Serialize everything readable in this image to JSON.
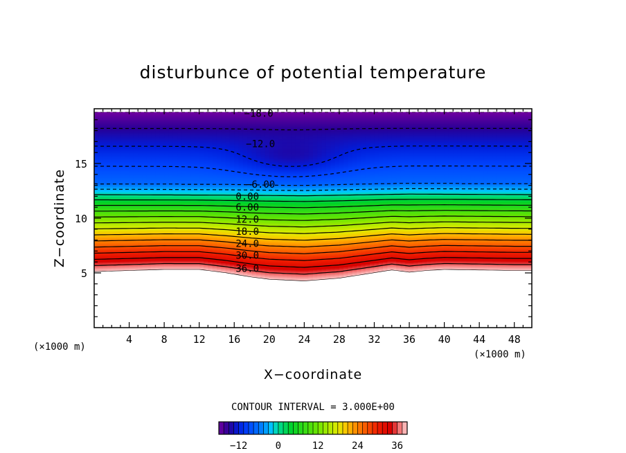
{
  "chart_data": {
    "type": "heatmap",
    "subtype": "filled-contour",
    "title": "disturbunce of potential temperature",
    "xlabel": "X−coordinate",
    "ylabel": "Z−coordinate",
    "x_unit_left": "(×1000 m)",
    "x_unit_right": "(×1000 m)",
    "xlim": [
      0,
      50
    ],
    "ylim": [
      0,
      20
    ],
    "xticks": [
      "4",
      "8",
      "12",
      "16",
      "20",
      "24",
      "28",
      "32",
      "36",
      "40",
      "44",
      "48"
    ],
    "yticks": [
      "5",
      "10",
      "15"
    ],
    "contour_interval_text": "CONTOUR INTERVAL = 3.000E+00",
    "contour_interval": 3.0,
    "value_range": [
      -18,
      39
    ],
    "colorbar_ticks": [
      "−12",
      "0",
      "12",
      "24",
      "36"
    ],
    "colorbar_tick_values": [
      -12,
      0,
      12,
      24,
      36
    ],
    "negative_contours": "dashed",
    "contour_labels": [
      {
        "text": "−18.0",
        "x": 18.8,
        "z": 19.6
      },
      {
        "text": "−12.0",
        "x": 19.0,
        "z": 16.8
      },
      {
        "text": "−6.00",
        "x": 19.0,
        "z": 13.1
      },
      {
        "text": "0.00",
        "x": 17.5,
        "z": 12.0
      },
      {
        "text": "6.00",
        "x": 17.5,
        "z": 11.0
      },
      {
        "text": "12.0",
        "x": 17.5,
        "z": 9.9
      },
      {
        "text": "18.0",
        "x": 17.5,
        "z": 8.8
      },
      {
        "text": "24.0",
        "x": 17.5,
        "z": 7.7
      },
      {
        "text": "30.0",
        "x": 17.5,
        "z": 6.6
      },
      {
        "text": "36.0",
        "x": 17.5,
        "z": 5.4
      }
    ],
    "structure": {
      "field_top_z": 19.7,
      "lower_boundary": [
        [
          0,
          5.1
        ],
        [
          4,
          5.2
        ],
        [
          8,
          5.3
        ],
        [
          12,
          5.3
        ],
        [
          15,
          5.0
        ],
        [
          18,
          4.6
        ],
        [
          20,
          4.4
        ],
        [
          24,
          4.25
        ],
        [
          28,
          4.5
        ],
        [
          32,
          5.0
        ],
        [
          34,
          5.25
        ],
        [
          36,
          5.05
        ],
        [
          38,
          5.2
        ],
        [
          40,
          5.3
        ],
        [
          44,
          5.25
        ],
        [
          48,
          5.2
        ],
        [
          50,
          5.2
        ]
      ],
      "zero_contour_height": [
        [
          0,
          12.15
        ],
        [
          16,
          12.1
        ],
        [
          24,
          12.05
        ],
        [
          36,
          12.2
        ],
        [
          50,
          12.15
        ]
      ],
      "cold_pool": {
        "x": 22.5,
        "z": 15.4,
        "value": -9
      }
    }
  }
}
